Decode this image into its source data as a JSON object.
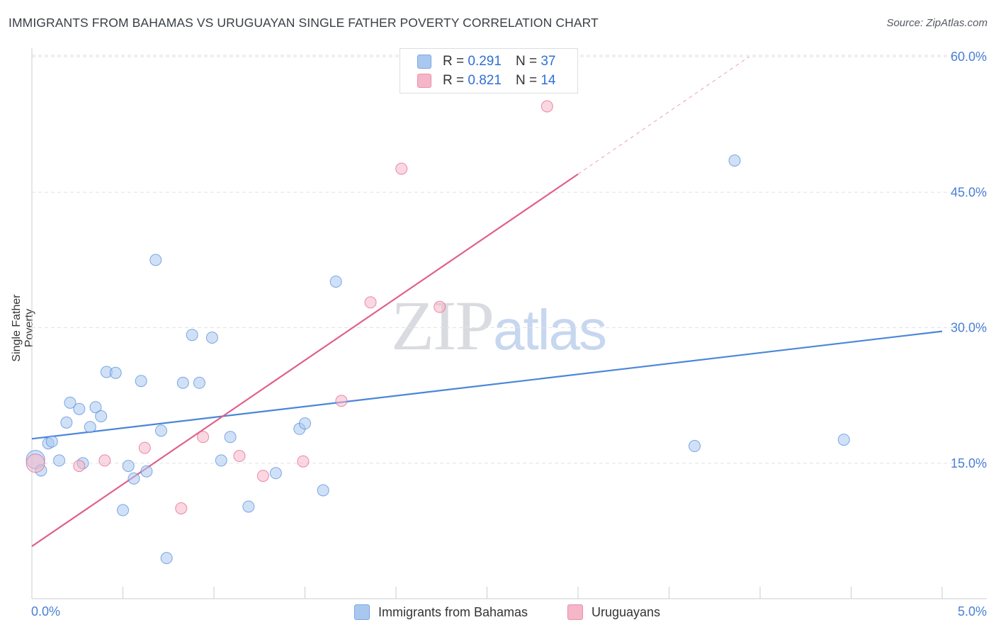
{
  "header": {
    "title": "IMMIGRANTS FROM BAHAMAS VS URUGUAYAN SINGLE FATHER POVERTY CORRELATION CHART",
    "source": "Source: ZipAtlas.com"
  },
  "watermark": {
    "zip": "ZIP",
    "atlas": "atlas"
  },
  "legend_top": {
    "rows": [
      {
        "r_label": "R = ",
        "r_value": "0.291",
        "n_label": "N = ",
        "n_value": "37",
        "color": "#a9c8f0"
      },
      {
        "r_label": "R = ",
        "r_value": "0.821",
        "n_label": "N = ",
        "n_value": "14",
        "color": "#f5b6c8"
      }
    ]
  },
  "legend_bottom": {
    "items": [
      {
        "label": "Immigrants from Bahamas",
        "color": "#a9c8f0"
      },
      {
        "label": "Uruguayans",
        "color": "#f5b6c8"
      }
    ]
  },
  "chart_data": {
    "type": "scatter",
    "title": "IMMIGRANTS FROM BAHAMAS VS URUGUAYAN SINGLE FATHER POVERTY CORRELATION CHART",
    "xlabel": "",
    "ylabel": "Single Father Poverty",
    "xlim": [
      0.0,
      5.0
    ],
    "ylim": [
      0.0,
      60.0
    ],
    "x_tick_labels": [
      "0.0%",
      "5.0%"
    ],
    "y_tick_labels": [
      "15.0%",
      "30.0%",
      "45.0%",
      "60.0%"
    ],
    "y_ticks": [
      15,
      30,
      45,
      60
    ],
    "grid": true,
    "series": [
      {
        "name": "Immigrants from Bahamas",
        "color": "#4a86d8",
        "fill": "#a9c8f0",
        "points": [
          [
            0.02,
            15.4
          ],
          [
            0.05,
            14.2
          ],
          [
            0.09,
            17.2
          ],
          [
            0.11,
            17.4
          ],
          [
            0.15,
            15.3
          ],
          [
            0.19,
            19.5
          ],
          [
            0.21,
            21.7
          ],
          [
            0.26,
            21.0
          ],
          [
            0.28,
            15.0
          ],
          [
            0.32,
            19.0
          ],
          [
            0.35,
            21.2
          ],
          [
            0.38,
            20.2
          ],
          [
            0.41,
            25.1
          ],
          [
            0.46,
            25.0
          ],
          [
            0.5,
            9.8
          ],
          [
            0.53,
            14.7
          ],
          [
            0.56,
            13.3
          ],
          [
            0.6,
            24.1
          ],
          [
            0.63,
            14.1
          ],
          [
            0.68,
            37.5
          ],
          [
            0.71,
            18.6
          ],
          [
            0.74,
            4.5
          ],
          [
            0.83,
            23.9
          ],
          [
            0.88,
            29.2
          ],
          [
            0.92,
            23.9
          ],
          [
            0.99,
            28.9
          ],
          [
            1.04,
            15.3
          ],
          [
            1.09,
            17.9
          ],
          [
            1.19,
            10.2
          ],
          [
            1.34,
            13.9
          ],
          [
            1.47,
            18.8
          ],
          [
            1.5,
            19.4
          ],
          [
            1.6,
            12.0
          ],
          [
            1.67,
            35.1
          ],
          [
            3.64,
            16.9
          ],
          [
            3.86,
            48.5
          ],
          [
            4.46,
            17.6
          ]
        ],
        "trend": {
          "x0": 0.0,
          "y0": 17.7,
          "x1": 5.0,
          "y1": 29.6
        }
      },
      {
        "name": "Uruguayans",
        "color": "#e0608a",
        "fill": "#f5b6c8",
        "points": [
          [
            0.02,
            15.0
          ],
          [
            0.26,
            14.7
          ],
          [
            0.4,
            15.3
          ],
          [
            0.62,
            16.7
          ],
          [
            0.82,
            10.0
          ],
          [
            0.94,
            17.9
          ],
          [
            1.14,
            15.8
          ],
          [
            1.27,
            13.6
          ],
          [
            1.49,
            15.2
          ],
          [
            1.7,
            21.9
          ],
          [
            1.86,
            32.8
          ],
          [
            2.03,
            47.6
          ],
          [
            2.24,
            32.3
          ],
          [
            2.83,
            54.5
          ]
        ],
        "trend": {
          "x0": 0.0,
          "y0": 5.8,
          "x1": 3.0,
          "y1": 47.0
        },
        "trend_extension": {
          "x0": 3.0,
          "y0": 47.0,
          "x1": 3.94,
          "y1": 60.0
        }
      }
    ]
  }
}
